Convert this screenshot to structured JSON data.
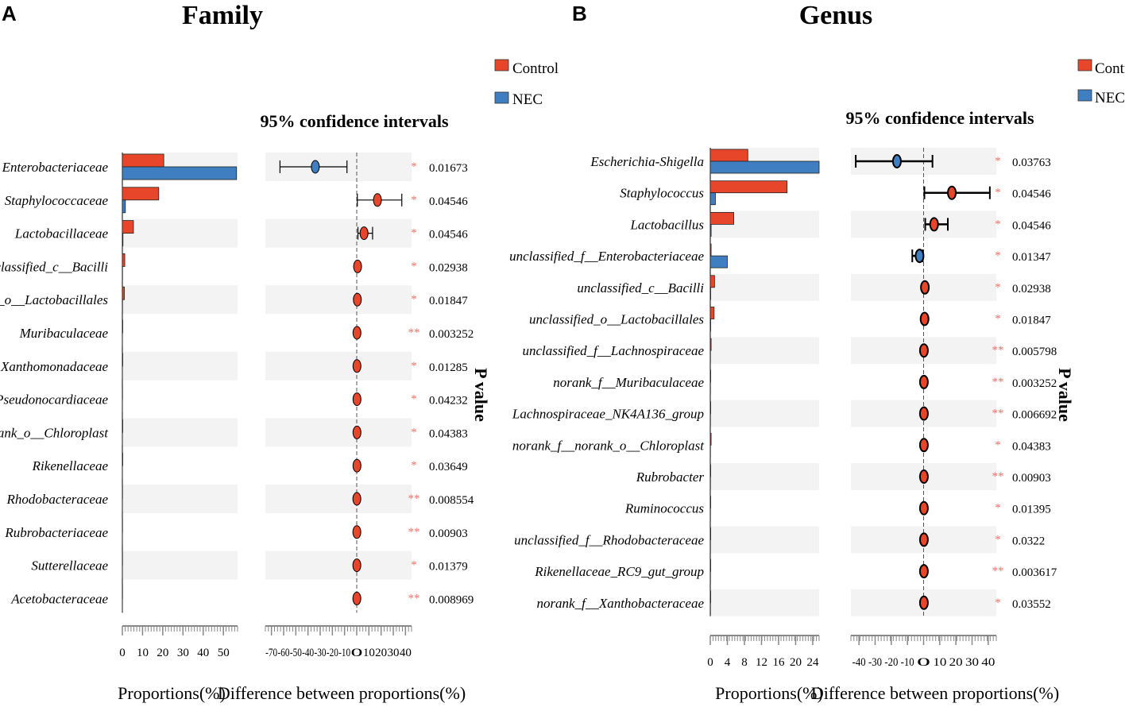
{
  "colors": {
    "control": "#e8462a",
    "nec": "#3f7ec0",
    "star": "#e8736a",
    "band": "#f3f3f3"
  },
  "legend": {
    "control": "Control",
    "nec": "NEC"
  },
  "common": {
    "ci_title": "95% confidence intervals",
    "xlabel_prop": "Proportions(%)",
    "xlabel_diff": "Difference between proportions(%)",
    "pvalue_label": "P value"
  },
  "chart_data": [
    {
      "panel": "A",
      "title": "Family",
      "type": "bar",
      "categories": [
        "Enterobacteriaceae",
        "Staphylococcaceae",
        "Lactobacillaceae",
        "unclassified_c__Bacilli",
        "unclassified_o__Lactobacillales",
        "Muribaculaceae",
        "Xanthomonadaceae",
        "Pseudonocardiaceae",
        "norank_o__Chloroplast",
        "Rikenellaceae",
        "Rhodobacteraceae",
        "Rubrobacteriaceae",
        "Sutterellaceae",
        "Acetobacteraceae"
      ],
      "series": [
        {
          "name": "Control",
          "values": [
            20.5,
            18,
            5.5,
            1.2,
            1.0,
            0.2,
            0.2,
            0.1,
            0.2,
            0.2,
            0.1,
            0.1,
            0.1,
            0.1
          ]
        },
        {
          "name": "NEC",
          "values": [
            56.5,
            1.5,
            0.3,
            0.1,
            0.1,
            0.05,
            0.05,
            0.05,
            0.05,
            0.05,
            0.05,
            0.05,
            0.05,
            0.05
          ]
        }
      ],
      "prop_ticks": [
        "0",
        "10",
        "20",
        "30",
        "40",
        "50"
      ],
      "prop_xlim": [
        0,
        57
      ],
      "diff": [
        -34,
        17,
        6,
        0.7,
        0.5,
        0.2,
        0.2,
        0.2,
        0.2,
        0.2,
        0.1,
        0.1,
        0.1,
        0.1
      ],
      "ci_low": [
        -63,
        0.5,
        1,
        0.1,
        0.1,
        0.05,
        0.05,
        0.05,
        0.05,
        0.05,
        0.05,
        0.05,
        0.05,
        0.05
      ],
      "ci_high": [
        -8,
        37,
        13,
        1.3,
        1.0,
        0.4,
        0.4,
        0.4,
        0.4,
        0.4,
        0.3,
        0.3,
        0.3,
        0.3
      ],
      "diff_ticks": [
        "-70",
        "-60",
        "-50",
        "-40",
        "-30",
        "-20",
        "-10",
        "0",
        "10",
        "20",
        "30",
        "40"
      ],
      "diff_xlim": [
        -75,
        45
      ],
      "stars": [
        "*",
        "*",
        "*",
        "*",
        "*",
        "**",
        "*",
        "*",
        "*",
        "*",
        "**",
        "**",
        "*",
        "**"
      ],
      "pvalues": [
        "0.01673",
        "0.04546",
        "0.04546",
        "0.02938",
        "0.01847",
        "0.003252",
        "0.01285",
        "0.04232",
        "0.04383",
        "0.03649",
        "0.008554",
        "0.00903",
        "0.01379",
        "0.008969"
      ],
      "xlabel": "Proportions(%)"
    },
    {
      "panel": "B",
      "title": "Genus",
      "type": "bar",
      "categories": [
        "Escherichia-Shigella",
        "Staphylococcus",
        "Lactobacillus",
        "unclassified_f__Enterobacteriaceae",
        "unclassified_c__Bacilli",
        "unclassified_o__Lactobacillales",
        "unclassified_f__Lachnospiraceae",
        "norank_f__Muribaculaceae",
        "Lachnospiraceae_NK4A136_group",
        "norank_f__norank_o__Chloroplast",
        "Rubrobacter",
        "Ruminococcus",
        "unclassified_f__Rhodobacteraceae",
        "Rikenellaceae_RC9_gut_group",
        "norank_f__Xanthobacteraceae"
      ],
      "series": [
        {
          "name": "Control",
          "values": [
            8.8,
            18,
            5.5,
            0.2,
            1.0,
            0.9,
            0.2,
            0.1,
            0.1,
            0.2,
            0.1,
            0.1,
            0.1,
            0.1,
            0.1
          ]
        },
        {
          "name": "NEC",
          "values": [
            25.5,
            1.2,
            0.2,
            4.0,
            0.1,
            0.1,
            0.05,
            0.05,
            0.05,
            0.05,
            0.05,
            0.05,
            0.05,
            0.05,
            0.05
          ]
        }
      ],
      "prop_ticks": [
        "0",
        "4",
        "8",
        "12",
        "16",
        "20",
        "24"
      ],
      "prop_xlim": [
        0,
        25.5
      ],
      "diff": [
        -16.5,
        17.5,
        6.5,
        -2.5,
        0.8,
        0.6,
        0.2,
        0.2,
        0.2,
        0.2,
        0.2,
        0.2,
        0.2,
        0.2,
        0.2
      ],
      "ci_low": [
        -42,
        0.5,
        1,
        -7,
        0.2,
        0.1,
        0.05,
        0.05,
        0.05,
        0.05,
        0.05,
        0.05,
        0.05,
        0.05,
        0.05
      ],
      "ci_high": [
        5.5,
        41,
        15,
        -0.5,
        1.4,
        1.1,
        0.4,
        0.4,
        0.4,
        0.4,
        0.4,
        0.4,
        0.4,
        0.4,
        0.4
      ],
      "diff_ticks": [
        "-40",
        "-30",
        "-20",
        "-10",
        "0",
        "10",
        "20",
        "30",
        "40"
      ],
      "diff_xlim": [
        -45,
        45
      ],
      "stars": [
        "*",
        "*",
        "*",
        "*",
        "*",
        "*",
        "**",
        "**",
        "**",
        "*",
        "**",
        "*",
        "*",
        "**",
        "*"
      ],
      "pvalues": [
        "0.03763",
        "0.04546",
        "0.04546",
        "0.01347",
        "0.02938",
        "0.01847",
        "0.005798",
        "0.003252",
        "0.006692",
        "0.04383",
        "0.00903",
        "0.01395",
        "0.0322",
        "0.003617",
        "0.03552"
      ],
      "xlabel": "Proportions(%)"
    }
  ]
}
